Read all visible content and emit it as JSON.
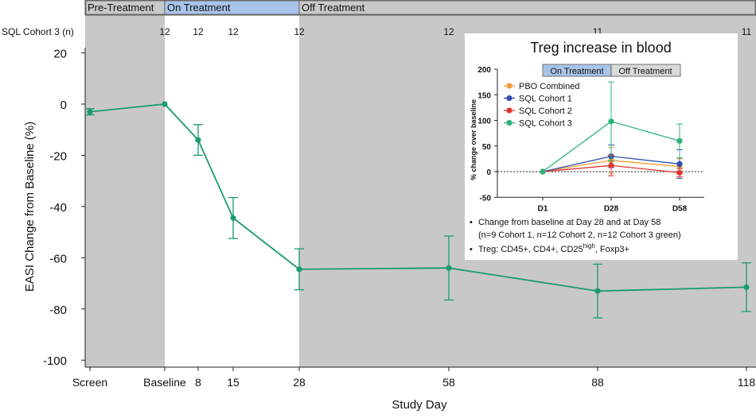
{
  "chart_data": [
    {
      "type": "line",
      "xlabel": "Study Day",
      "ylabel": "EASI Change from Baseline (%)",
      "ylim": [
        -100,
        20
      ],
      "yticks": [
        "20",
        "0",
        "-20",
        "-40",
        "-60",
        "-80",
        "-100"
      ],
      "x_tick_labels": [
        "Screen",
        "Baseline",
        "8",
        "15",
        "28",
        "58",
        "88",
        "118"
      ],
      "phases": [
        {
          "label": "Pre-Treatment",
          "color": "#c8c8c8"
        },
        {
          "label": "On Treatment",
          "color": "#a9c4ea"
        },
        {
          "label": "Off Treatment",
          "color": "#c8c8c8"
        }
      ],
      "n_row": {
        "label": "SQL Cohort 3 (n)",
        "values": [
          "12",
          "12",
          "12",
          "12",
          "12",
          "11",
          "11"
        ]
      },
      "series": [
        {
          "color": "#1a9c6b",
          "points": [
            {
              "x": "Screen",
              "y": -3,
              "err": 1.2
            },
            {
              "x": "Baseline",
              "y": 0,
              "err": 0
            },
            {
              "x": "8",
              "y": -14,
              "err": 6
            },
            {
              "x": "15",
              "y": -44.5,
              "err": 8
            },
            {
              "x": "28",
              "y": -64.5,
              "err": 8
            },
            {
              "x": "58",
              "y": -64,
              "err": 12.5
            },
            {
              "x": "88",
              "y": -73,
              "err": 10.5
            },
            {
              "x": "118",
              "y": -71.5,
              "err": 9.5
            }
          ]
        }
      ]
    },
    {
      "type": "line",
      "title": "Treg increase in blood",
      "ylabel": "% change over baseline",
      "ylim": [
        -50,
        200
      ],
      "yticks": [
        "200",
        "150",
        "100",
        "50",
        "0",
        "-50"
      ],
      "categories": [
        "D1",
        "D28",
        "D58"
      ],
      "phases": [
        {
          "label": "On Treatment",
          "color": "#a9c4ea"
        },
        {
          "label": "Off Treatment",
          "color": "#d9d9d9"
        }
      ],
      "series": [
        {
          "name": "PBO Combined",
          "color": "#f39a3b",
          "values": [
            0,
            22,
            10
          ],
          "err": [
            0,
            25,
            15
          ]
        },
        {
          "name": "SQL Cohort 1",
          "color": "#2f4fae",
          "values": [
            0,
            30,
            15
          ],
          "err": [
            0,
            22,
            28
          ]
        },
        {
          "name": "SQL Cohort 2",
          "color": "#e0342f",
          "values": [
            0,
            12,
            -2
          ],
          "err": [
            0,
            20,
            8
          ]
        },
        {
          "name": "SQL Cohort 3",
          "color": "#2bb57a",
          "values": [
            0,
            98,
            60
          ],
          "err": [
            0,
            77,
            33
          ]
        }
      ],
      "notes": [
        "Change from baseline at Day 28 and at Day 58",
        "(n=9 Cohort 1, n=12 Cohort 2, n=12 Cohort 3 green)"
      ],
      "treg_note": {
        "prefix": "Treg: CD45+, CD4+, CD25",
        "sup": "high",
        "suffix": ", Foxp3+"
      }
    }
  ]
}
